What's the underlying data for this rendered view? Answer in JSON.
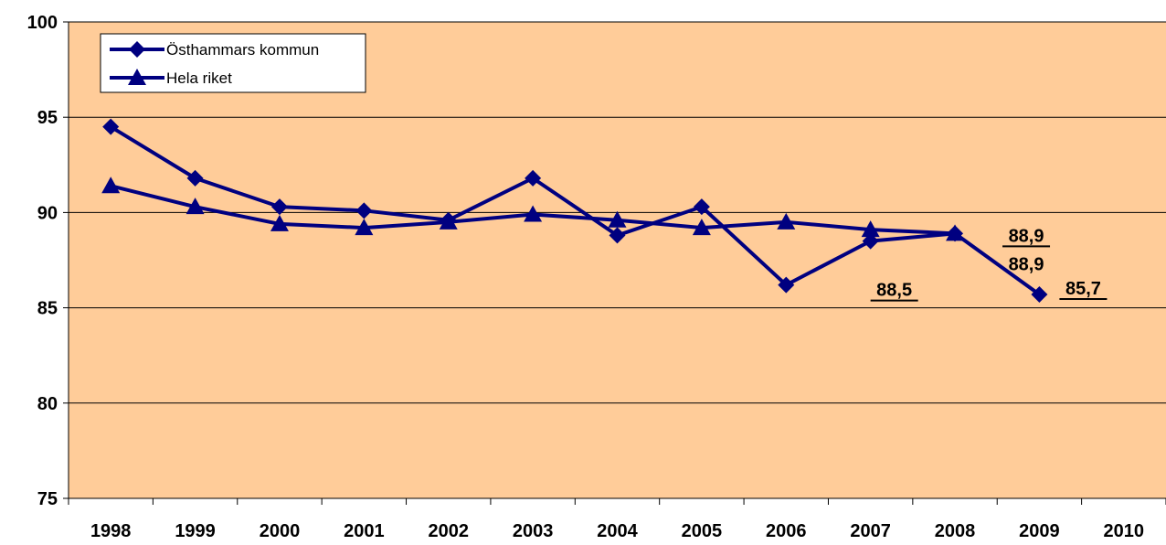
{
  "chart_data": {
    "type": "line",
    "title": "",
    "xlabel": "",
    "ylabel": "",
    "categories": [
      "1998",
      "1999",
      "2000",
      "2001",
      "2002",
      "2003",
      "2004",
      "2005",
      "2006",
      "2007",
      "2008",
      "2009",
      "2010"
    ],
    "ylim": [
      75,
      100
    ],
    "yticks": [
      75,
      80,
      85,
      90,
      95,
      100
    ],
    "ytick_labels": [
      "75",
      "80",
      "85",
      "90",
      "95",
      "100"
    ],
    "grid": "horizontal",
    "legend_position": "top-left",
    "colors": {
      "plot_bg": "#FFCC99",
      "series": "#000080"
    },
    "series": [
      {
        "name": "Östhammars kommun",
        "marker": "diamond",
        "values": [
          94.5,
          91.8,
          90.3,
          90.1,
          89.6,
          91.8,
          88.8,
          90.3,
          86.2,
          88.5,
          88.9,
          85.7,
          null
        ]
      },
      {
        "name": "Hela riket",
        "marker": "triangle",
        "values": [
          91.4,
          90.3,
          89.4,
          89.2,
          89.5,
          89.9,
          89.6,
          89.2,
          89.5,
          89.1,
          88.9,
          null,
          null
        ]
      }
    ],
    "annotations": [
      {
        "series": 0,
        "index": 9,
        "text": "88,5",
        "underline": true
      },
      {
        "series": 1,
        "index": 10,
        "text": "88,9",
        "underline": true
      },
      {
        "series": 0,
        "index": 10,
        "text": "88,9",
        "underline": false
      },
      {
        "series": 0,
        "index": 11,
        "text": "85,7",
        "underline": true
      }
    ]
  }
}
